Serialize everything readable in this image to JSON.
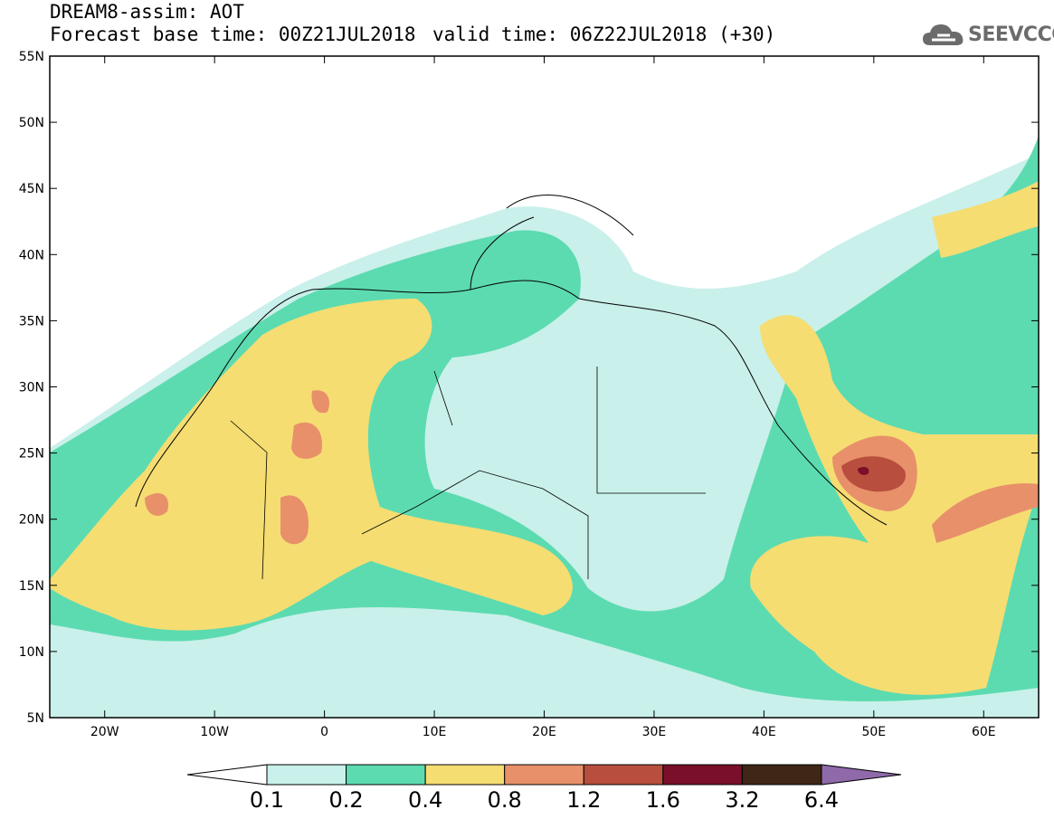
{
  "header": {
    "title": "DREAM8-assim: AOT",
    "base_time": "Forecast base time: 00Z21JUL2018",
    "valid_time": "valid time: 06Z22JUL2018 (+30)"
  },
  "logo": {
    "text": "SEEVCCC",
    "icon": "cloud-icon"
  },
  "map": {
    "lon_range": [
      -25,
      65
    ],
    "lat_range": [
      5,
      55
    ],
    "lon_ticks": [
      {
        "value": -20,
        "label": "20W"
      },
      {
        "value": -10,
        "label": "10W"
      },
      {
        "value": 0,
        "label": "0"
      },
      {
        "value": 10,
        "label": "10E"
      },
      {
        "value": 20,
        "label": "20E"
      },
      {
        "value": 30,
        "label": "30E"
      },
      {
        "value": 40,
        "label": "40E"
      },
      {
        "value": 50,
        "label": "50E"
      },
      {
        "value": 60,
        "label": "60E"
      }
    ],
    "lat_ticks": [
      {
        "value": 5,
        "label": "5N"
      },
      {
        "value": 10,
        "label": "10N"
      },
      {
        "value": 15,
        "label": "15N"
      },
      {
        "value": 20,
        "label": "20N"
      },
      {
        "value": 25,
        "label": "25N"
      },
      {
        "value": 30,
        "label": "30N"
      },
      {
        "value": 35,
        "label": "35N"
      },
      {
        "value": 40,
        "label": "40N"
      },
      {
        "value": 45,
        "label": "45N"
      },
      {
        "value": 50,
        "label": "50N"
      },
      {
        "value": 55,
        "label": "55N"
      }
    ]
  },
  "colorbar": {
    "labels": [
      "0.1",
      "0.2",
      "0.4",
      "0.8",
      "1.2",
      "1.6",
      "3.2",
      "6.4"
    ],
    "colors": {
      "below": "#ffffff",
      "bins": [
        "#c9f0ea",
        "#5cdbb0",
        "#f5dd72",
        "#e8906a",
        "#b84e3e",
        "#7a0f2a",
        "#3f2616"
      ],
      "above": "#8f6aaa"
    }
  }
}
